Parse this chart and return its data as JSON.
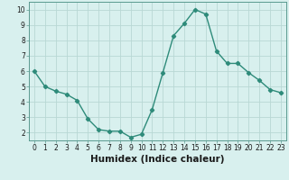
{
  "x": [
    0,
    1,
    2,
    3,
    4,
    5,
    6,
    7,
    8,
    9,
    10,
    11,
    12,
    13,
    14,
    15,
    16,
    17,
    18,
    19,
    20,
    21,
    22,
    23
  ],
  "y": [
    6.0,
    5.0,
    4.7,
    4.5,
    4.1,
    2.9,
    2.2,
    2.1,
    2.1,
    1.7,
    1.9,
    3.5,
    5.9,
    8.3,
    9.1,
    10.0,
    9.7,
    7.3,
    6.5,
    6.5,
    5.9,
    5.4,
    4.8,
    4.6
  ],
  "line_color": "#2e8b7a",
  "marker": "D",
  "marker_size": 2.2,
  "bg_color": "#d8f0ee",
  "grid_color": "#b8d8d4",
  "xlabel": "Humidex (Indice chaleur)",
  "xlim": [
    -0.5,
    23.5
  ],
  "ylim": [
    1.5,
    10.5
  ],
  "yticks": [
    2,
    3,
    4,
    5,
    6,
    7,
    8,
    9,
    10
  ],
  "xticks": [
    0,
    1,
    2,
    3,
    4,
    5,
    6,
    7,
    8,
    9,
    10,
    11,
    12,
    13,
    14,
    15,
    16,
    17,
    18,
    19,
    20,
    21,
    22,
    23
  ],
  "tick_label_fontsize": 5.5,
  "xlabel_fontsize": 7.5,
  "line_width": 1.0
}
